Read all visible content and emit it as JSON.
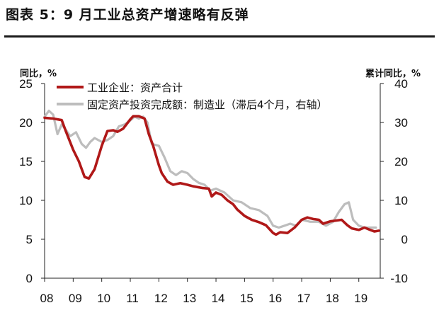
{
  "header": {
    "title": "图表 5：9 月工业总资产增速略有反弹"
  },
  "chart_data": {
    "type": "line",
    "title": "图表 5：9 月工业总资产增速略有反弹",
    "left_unit": "同比，%",
    "right_unit": "累计同比，%",
    "x_ticks": [
      "08",
      "09",
      "10",
      "11",
      "12",
      "13",
      "14",
      "15",
      "16",
      "17",
      "18",
      "19"
    ],
    "x_range": [
      2008.0,
      2019.75
    ],
    "y_left": {
      "range": [
        0,
        25
      ],
      "ticks": [
        "0",
        "5",
        "10",
        "15",
        "20",
        "25"
      ]
    },
    "y_right": {
      "range": [
        -10,
        40
      ],
      "ticks": [
        "-10",
        "0",
        "10",
        "20",
        "30",
        "40"
      ]
    },
    "legend_position": "top",
    "grid": false,
    "series": [
      {
        "name": "工业企业：资产合计",
        "axis": "left",
        "color": "#b01818",
        "x": [
          2008.0,
          2008.3,
          2008.6,
          2008.75,
          2009.0,
          2009.2,
          2009.4,
          2009.55,
          2009.75,
          2010.0,
          2010.2,
          2010.4,
          2010.55,
          2010.75,
          2011.0,
          2011.1,
          2011.3,
          2011.5,
          2011.65,
          2011.8,
          2012.0,
          2012.1,
          2012.3,
          2012.5,
          2012.75,
          2013.0,
          2013.2,
          2013.5,
          2013.75,
          2013.85,
          2014.0,
          2014.2,
          2014.4,
          2014.6,
          2014.75,
          2015.0,
          2015.25,
          2015.5,
          2015.75,
          2016.0,
          2016.1,
          2016.25,
          2016.5,
          2016.75,
          2017.0,
          2017.2,
          2017.4,
          2017.6,
          2017.75,
          2018.0,
          2018.2,
          2018.4,
          2018.6,
          2018.75,
          2019.0,
          2019.2,
          2019.4,
          2019.55,
          2019.7
        ],
        "values": [
          20.6,
          20.5,
          20.3,
          18.8,
          16.5,
          15.0,
          13.0,
          12.8,
          14.0,
          17.0,
          18.9,
          19.0,
          18.8,
          19.2,
          20.4,
          20.8,
          20.8,
          20.5,
          18.5,
          17.0,
          14.5,
          13.5,
          12.4,
          12.0,
          12.2,
          12.0,
          11.8,
          11.6,
          11.5,
          10.5,
          11.0,
          10.7,
          10.0,
          9.5,
          8.8,
          8.0,
          7.5,
          7.2,
          6.8,
          5.8,
          5.6,
          5.9,
          5.8,
          6.5,
          7.5,
          7.8,
          7.6,
          7.5,
          7.0,
          7.3,
          7.4,
          7.5,
          6.8,
          6.4,
          6.2,
          6.5,
          6.2,
          6.0,
          6.1
        ]
      },
      {
        "name": "固定资产投资完成额：制造业（滞后4个月，右轴）",
        "axis": "right",
        "color": "#bdbdbd",
        "x": [
          2008.0,
          2008.15,
          2008.3,
          2008.45,
          2008.6,
          2008.75,
          2008.9,
          2009.1,
          2009.3,
          2009.45,
          2009.6,
          2009.75,
          2010.0,
          2010.2,
          2010.4,
          2010.6,
          2010.8,
          2011.0,
          2011.15,
          2011.3,
          2011.45,
          2011.6,
          2011.75,
          2012.0,
          2012.2,
          2012.4,
          2012.6,
          2012.8,
          2013.0,
          2013.2,
          2013.4,
          2013.6,
          2013.8,
          2014.0,
          2014.3,
          2014.6,
          2014.9,
          2015.2,
          2015.5,
          2015.8,
          2016.0,
          2016.2,
          2016.4,
          2016.6,
          2016.8,
          2017.0,
          2017.3,
          2017.6,
          2017.85,
          2018.1,
          2018.3,
          2018.5,
          2018.65,
          2018.8,
          2019.0,
          2019.2,
          2019.4,
          2019.6
        ],
        "values": [
          31.5,
          33.0,
          32.0,
          27.0,
          29.5,
          28.0,
          26.5,
          27.5,
          24.5,
          23.5,
          25.0,
          26.0,
          25.0,
          25.5,
          26.5,
          29.0,
          29.5,
          30.5,
          31.5,
          31.0,
          31.5,
          30.0,
          24.5,
          24.0,
          21.0,
          17.5,
          16.5,
          17.5,
          17.0,
          15.5,
          14.5,
          14.0,
          12.5,
          13.0,
          12.0,
          10.0,
          9.5,
          8.0,
          7.5,
          6.0,
          3.5,
          3.0,
          3.5,
          4.0,
          3.5,
          5.0,
          4.5,
          4.5,
          3.5,
          4.5,
          7.0,
          9.0,
          9.5,
          5.0,
          3.5,
          3.0,
          3.0,
          3.0
        ]
      }
    ]
  }
}
